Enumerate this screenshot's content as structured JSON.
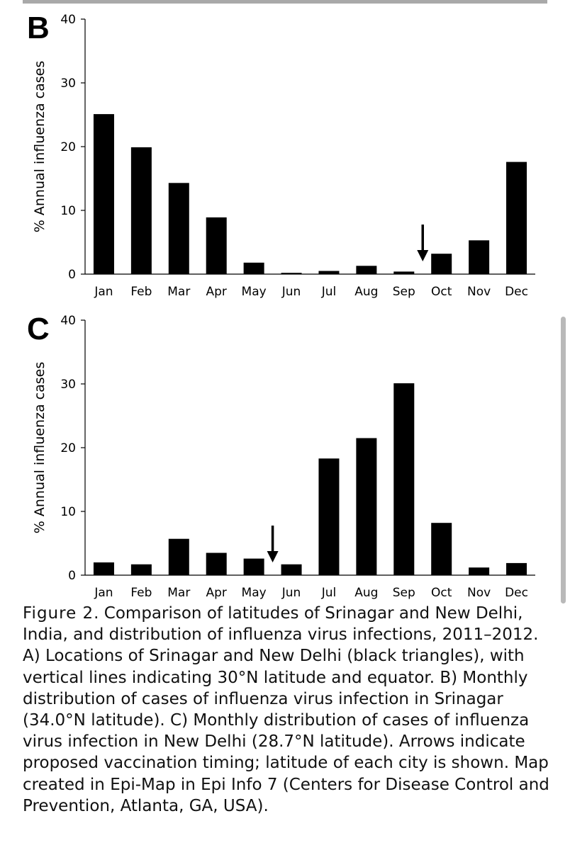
{
  "chart_data": [
    {
      "panel": "B",
      "type": "bar",
      "ylabel": "% Annual influenza cases",
      "xlabel": "",
      "ylim": [
        0,
        40
      ],
      "yticks": [
        "0",
        "10",
        "20",
        "30",
        "40"
      ],
      "categories": [
        "Jan",
        "Feb",
        "Mar",
        "Apr",
        "May",
        "Jun",
        "Jul",
        "Aug",
        "Sep",
        "Oct",
        "Nov",
        "Dec"
      ],
      "values": [
        25.1,
        19.9,
        14.3,
        8.9,
        1.8,
        0.2,
        0.5,
        1.3,
        0.4,
        3.2,
        5.3,
        17.6
      ],
      "bar_color": "#000000",
      "arrow_between": [
        "Sep",
        "Oct"
      ]
    },
    {
      "panel": "C",
      "type": "bar",
      "ylabel": "% Annual influenza cases",
      "xlabel": "",
      "ylim": [
        0,
        40
      ],
      "yticks": [
        "0",
        "10",
        "20",
        "30",
        "40"
      ],
      "categories": [
        "Jan",
        "Feb",
        "Mar",
        "Apr",
        "May",
        "Jun",
        "Jul",
        "Aug",
        "Sep",
        "Oct",
        "Nov",
        "Dec"
      ],
      "values": [
        2.0,
        1.7,
        5.7,
        3.5,
        2.6,
        1.7,
        18.3,
        21.5,
        30.1,
        8.2,
        1.2,
        1.9
      ],
      "bar_color": "#000000",
      "arrow_between": [
        "May",
        "Jun"
      ]
    }
  ],
  "caption": {
    "label": "Figure 2",
    "text": ". Comparison of latitudes of Srinagar and New Delhi, India, and distribution of influenza virus infections, 2011–2012. A) Locations of Srinagar and New Delhi (black triangles), with vertical lines indicating 30°N latitude and equator. B) Monthly distribution of cases of influenza virus infection in Srinagar (34.0°N latitude). C) Monthly distribution of cases of influenza virus infection in New Delhi (28.7°N latitude). Arrows indicate proposed vaccination timing; latitude of each city is shown. Map created in Epi-Map in Epi Info 7 (Centers for Disease Control and Prevention, Atlanta, GA, USA)."
  }
}
